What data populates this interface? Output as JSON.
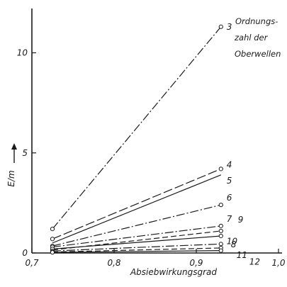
{
  "chart_data": {
    "type": "line",
    "xlabel": "Absiebwirkungsgrad",
    "ylabel": "E/m",
    "xlim": [
      0.7,
      1.0
    ],
    "ylim": [
      0,
      12
    ],
    "x_ticks": [
      0.7,
      0.8,
      0.9,
      1.0
    ],
    "x_tick_labels": [
      "0,7",
      "0,8",
      "0,9",
      "1,0"
    ],
    "y_ticks": [
      0,
      5,
      10
    ],
    "y_tick_labels": [
      "0",
      "5",
      "10"
    ],
    "legend": [
      "Ordnungs-",
      "zahl der",
      "Oberwellen"
    ],
    "grid": false,
    "series": [
      {
        "name": "3",
        "x": [
          0.725,
          0.93
        ],
        "y": [
          1.2,
          11.3
        ],
        "dash": "dashdot",
        "marker_ends": true
      },
      {
        "name": "4",
        "x": [
          0.725,
          0.93
        ],
        "y": [
          0.7,
          4.2
        ],
        "dash": "longdash",
        "marker_ends": true
      },
      {
        "name": "5",
        "x": [
          0.725,
          0.93
        ],
        "y": [
          0.5,
          3.9
        ],
        "dash": "solid",
        "marker_ends": false
      },
      {
        "name": "6",
        "x": [
          0.725,
          0.93
        ],
        "y": [
          0.35,
          2.4
        ],
        "dash": "dashdot",
        "marker_ends": true
      },
      {
        "name": "7",
        "x": [
          0.725,
          0.93
        ],
        "y": [
          0.3,
          1.35
        ],
        "dash": "dashdot",
        "marker_ends": true
      },
      {
        "name": "9",
        "x": [
          0.725,
          0.93
        ],
        "y": [
          0.15,
          1.1
        ],
        "dash": "dashed",
        "marker_ends": true
      },
      {
        "name": "8",
        "x": [
          0.725,
          0.93
        ],
        "y": [
          0.2,
          0.85
        ],
        "dash": "solid",
        "marker_ends": true
      },
      {
        "name": "10",
        "x": [
          0.725,
          0.93
        ],
        "y": [
          0.1,
          0.45
        ],
        "dash": "dashdot",
        "marker_ends": true
      },
      {
        "name": "11",
        "x": [
          0.725,
          0.93
        ],
        "y": [
          0.05,
          0.25
        ],
        "dash": "dashed",
        "marker_ends": true
      },
      {
        "name": "12",
        "x": [
          0.725,
          0.93
        ],
        "y": [
          0.03,
          0.12
        ],
        "dash": "solid",
        "marker_ends": true
      }
    ]
  }
}
